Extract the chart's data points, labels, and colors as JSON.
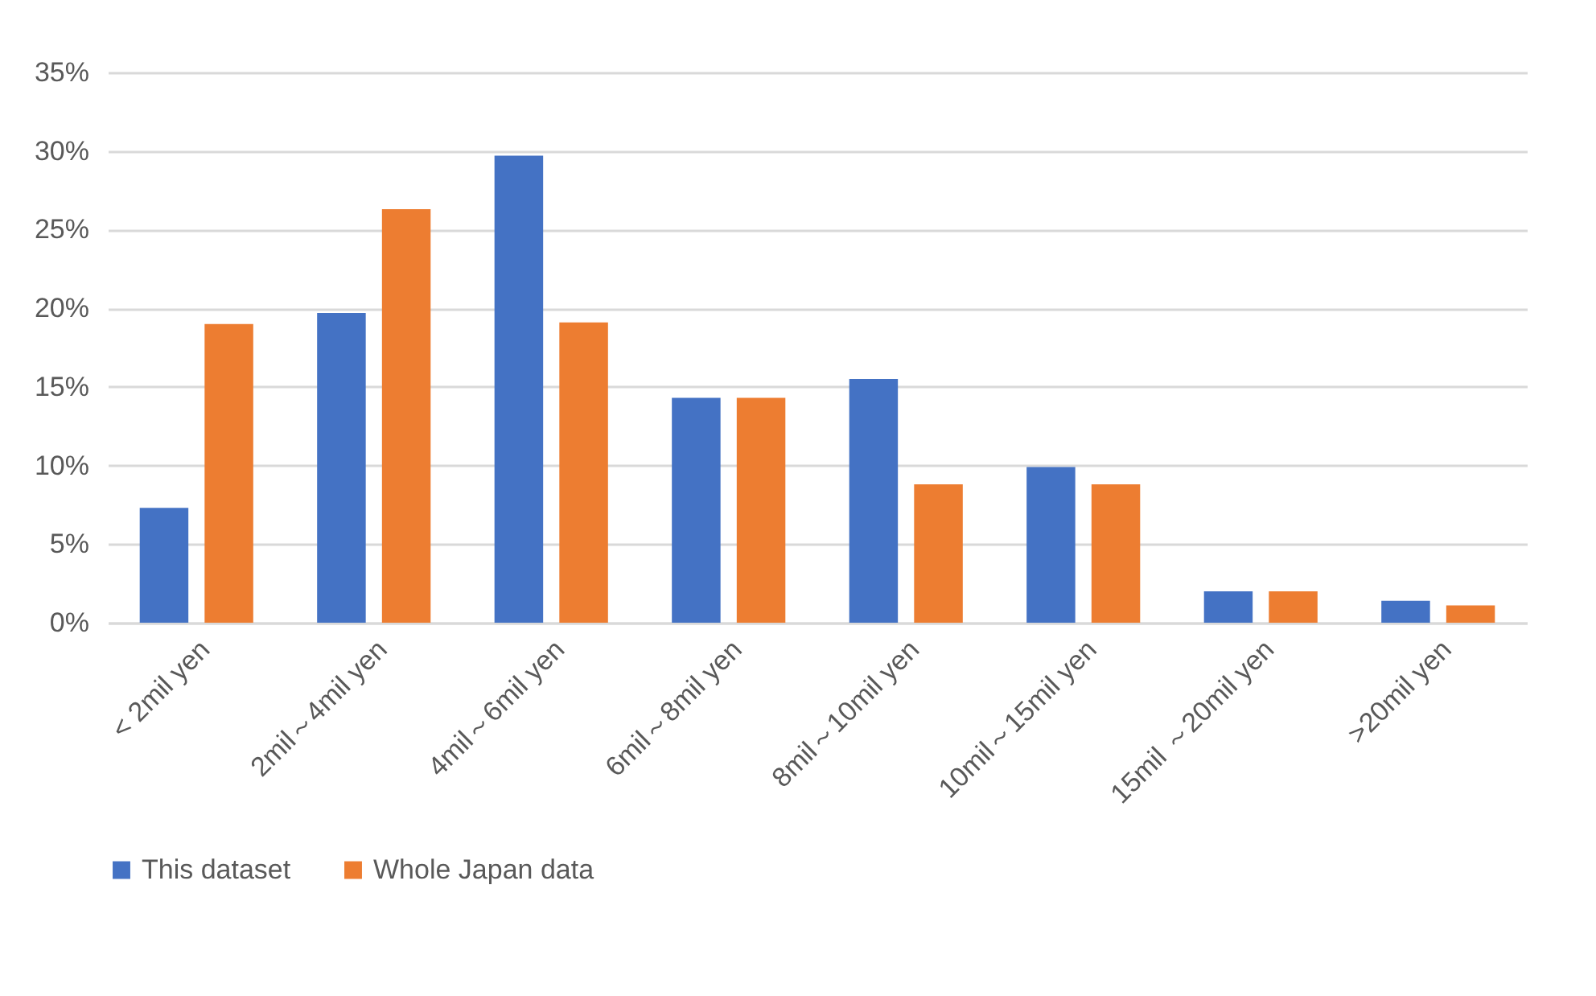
{
  "chart_data": {
    "type": "bar",
    "categories": [
      "< 2mil yen",
      "2mil～4mil yen",
      "4mil～6mil yen",
      "6mil～8mil yen",
      "8mil～10mil yen",
      "10mil～15mil yen",
      "15mil ～20mil yen",
      ">20mil yen"
    ],
    "series": [
      {
        "name": "This dataset",
        "color": "#4472c4",
        "values": [
          7.3,
          19.7,
          29.7,
          14.3,
          15.5,
          9.9,
          2.0,
          1.4
        ]
      },
      {
        "name": "Whole Japan data",
        "color": "#ed7d31",
        "values": [
          19.0,
          26.3,
          19.1,
          14.3,
          8.8,
          8.8,
          2.0,
          1.1
        ]
      }
    ],
    "ylim": [
      0,
      35
    ],
    "yticks": [
      {
        "value": 0,
        "label": "0%"
      },
      {
        "value": 5,
        "label": "5%"
      },
      {
        "value": 10,
        "label": "10%"
      },
      {
        "value": 15,
        "label": "15%"
      },
      {
        "value": 20,
        "label": "20%"
      },
      {
        "value": 25,
        "label": "25%"
      },
      {
        "value": 30,
        "label": "30%"
      },
      {
        "value": 35,
        "label": "35%"
      }
    ],
    "grid": "y",
    "legend": "bottom"
  }
}
